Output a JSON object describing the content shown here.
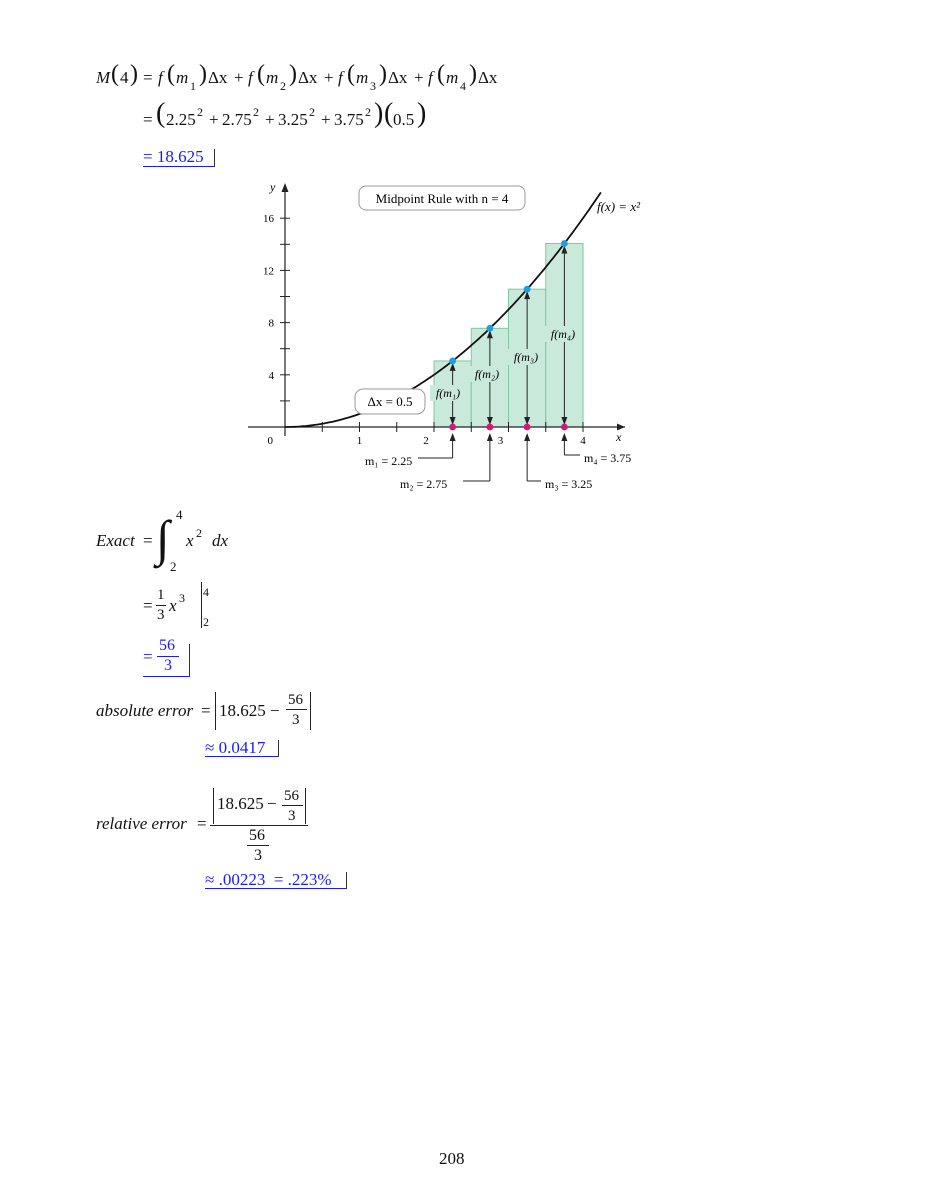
{
  "midpoint": {
    "line1": {
      "lhs": "M",
      "lhs_arg": "4",
      "eq": "=",
      "f": "f",
      "m": "m",
      "subs": [
        "1",
        "2",
        "3",
        "4"
      ],
      "dx": "Δx",
      "plus": "+"
    },
    "line2": {
      "eq": "=",
      "terms": [
        "2.25",
        "2.75",
        "3.25",
        "3.75"
      ],
      "exp": "2",
      "plus": "+",
      "factor": "0.5"
    },
    "result": "= 18.625"
  },
  "graph": {
    "title_box": "Midpoint Rule with n = 4",
    "function_label": "f(x) = x²",
    "dx_label": "Δx = 0.5",
    "y_axis_label": "y",
    "x_axis_label": "x",
    "y_ticks": [
      "16",
      "12",
      "8",
      "4",
      "0"
    ],
    "x_ticks": [
      "1",
      "2",
      "3",
      "4"
    ],
    "f_labels": [
      "f(m₁)",
      "f(m₂)",
      "f(m₃)",
      "f(m₄)"
    ],
    "m_labels": [
      "m₁ = 2.25",
      "m₂ = 2.75",
      "m₃ = 3.25",
      "m₄ = 3.75"
    ],
    "midpoints": [
      2.25,
      2.75,
      3.25,
      3.75
    ],
    "values": [
      5.0625,
      7.5625,
      10.5625,
      14.0625
    ],
    "colors": {
      "rect_fill": "#c9eadb",
      "rect_stroke": "#7cc9a3",
      "curve": "#111111",
      "midpoint_dot": "#d6157a",
      "curve_dot": "#1aa0e0"
    }
  },
  "exact": {
    "label": "Exact",
    "eq": "=",
    "upper": "4",
    "lower": "2",
    "integrand": "x",
    "exp": "2",
    "dx": "dx",
    "step2_num": "1",
    "step2_den": "3",
    "step2_var": "x",
    "step2_exp": "3",
    "eval_upper": "4",
    "eval_lower": "2",
    "result_num": "56",
    "result_den": "3",
    "result_eq": "="
  },
  "absolute_error": {
    "label": "absolute error",
    "eq": "=",
    "value": "18.625",
    "minus": "−",
    "num": "56",
    "den": "3",
    "result": "≈ 0.0417"
  },
  "relative_error": {
    "label": "relative error",
    "eq": "=",
    "value": "18.625",
    "minus": "−",
    "num": "56",
    "den": "3",
    "den_num": "56",
    "den_den": "3",
    "result": "≈ .00223  = .223%"
  },
  "page_number": "208"
}
